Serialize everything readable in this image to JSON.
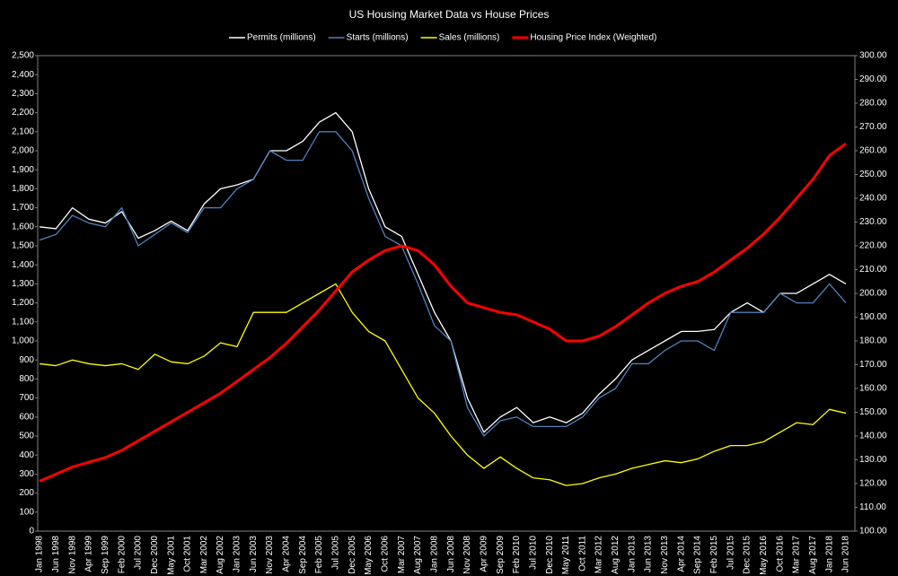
{
  "chart_data": {
    "type": "line",
    "title": "US Housing Market Data vs House Prices",
    "categories": [
      "Jan 1998",
      "Jun 1998",
      "Nov 1998",
      "Apr 1999",
      "Sep 1999",
      "Feb 2000",
      "Jul 2000",
      "Dec 2000",
      "May 2001",
      "Oct 2001",
      "Mar 2002",
      "Aug 2002",
      "Jan 2003",
      "Jun 2003",
      "Nov 2003",
      "Apr 2004",
      "Sep 2004",
      "Feb 2005",
      "Jul 2005",
      "Dec 2005",
      "May 2006",
      "Oct 2006",
      "Mar 2007",
      "Aug 2007",
      "Jan 2008",
      "Jun 2008",
      "Nov 2008",
      "Apr 2009",
      "Sep 2009",
      "Feb 2010",
      "Jul 2010",
      "Dec 2010",
      "May 2011",
      "Oct 2011",
      "Mar 2012",
      "Aug 2012",
      "Jan 2013",
      "Jun 2013",
      "Nov 2013",
      "Apr 2014",
      "Sep 2014",
      "Feb 2015",
      "Jul 2015",
      "Dec 2015",
      "May 2016",
      "Oct 2016",
      "Mar 2017",
      "Aug 2017",
      "Jan 2018",
      "Jun 2018"
    ],
    "series": [
      {
        "name": "Permits (millions)",
        "color": "#ffffff",
        "values": [
          1600,
          1590,
          1700,
          1640,
          1620,
          1680,
          1540,
          1580,
          1630,
          1580,
          1720,
          1800,
          1820,
          1850,
          2000,
          2000,
          2050,
          2150,
          2200,
          2100,
          1800,
          1600,
          1550,
          1350,
          1150,
          1000,
          700,
          520,
          600,
          650,
          570,
          600,
          570,
          620,
          720,
          800,
          900,
          950,
          1000,
          1050,
          1050,
          1060,
          1150,
          1200,
          1150,
          1250,
          1250,
          1300,
          1350,
          1300
        ]
      },
      {
        "name": "Starts (millions)",
        "color": "#4f81bd",
        "values": [
          1530,
          1560,
          1660,
          1620,
          1600,
          1700,
          1500,
          1560,
          1620,
          1570,
          1700,
          1700,
          1800,
          1850,
          2000,
          1950,
          1950,
          2100,
          2100,
          2000,
          1750,
          1550,
          1500,
          1300,
          1080,
          1000,
          650,
          500,
          580,
          600,
          550,
          550,
          550,
          600,
          700,
          750,
          880,
          880,
          950,
          1000,
          1000,
          950,
          1150,
          1150,
          1150,
          1250,
          1200,
          1200,
          1300,
          1200
        ]
      },
      {
        "name": "Sales (millions)",
        "color": "#ffff00",
        "values": [
          880,
          870,
          900,
          880,
          870,
          880,
          850,
          930,
          890,
          880,
          920,
          990,
          970,
          1150,
          1150,
          1150,
          1200,
          1250,
          1300,
          1150,
          1050,
          1000,
          850,
          700,
          620,
          500,
          400,
          330,
          390,
          330,
          280,
          270,
          240,
          250,
          280,
          300,
          330,
          350,
          370,
          360,
          380,
          420,
          450,
          450,
          470,
          520,
          570,
          560,
          640,
          620
        ]
      },
      {
        "name": "Housing Price Index (Weighted)",
        "color": "#ff0000",
        "axis": "y2",
        "values": [
          121,
          124,
          127,
          129,
          131,
          134,
          138,
          142,
          146,
          150,
          154,
          158,
          163,
          168,
          173,
          179,
          186,
          193,
          201,
          209,
          214,
          218,
          220,
          218,
          212,
          203,
          196,
          194,
          192,
          191,
          188,
          185,
          180,
          180,
          182,
          186,
          191,
          196,
          200,
          203,
          205,
          209,
          214,
          219,
          225,
          232,
          240,
          248,
          258,
          263
        ]
      }
    ],
    "ylim": [
      0,
      2500
    ],
    "yticks": [
      0,
      100,
      200,
      300,
      400,
      500,
      600,
      700,
      800,
      900,
      {
        "value": 1000,
        "label": "1,000"
      },
      {
        "value": 1100,
        "label": "1,100"
      },
      {
        "value": 1200,
        "label": "1,200"
      },
      {
        "value": 1300,
        "label": "1,300"
      },
      {
        "value": 1400,
        "label": "1,400"
      },
      {
        "value": 1500,
        "label": "1,500"
      },
      {
        "value": 1600,
        "label": "1,600"
      },
      {
        "value": 1700,
        "label": "1,700"
      },
      {
        "value": 1800,
        "label": "1,800"
      },
      {
        "value": 1900,
        "label": "1,900"
      },
      {
        "value": 2000,
        "label": "2,000"
      },
      {
        "value": 2100,
        "label": "2,100"
      },
      {
        "value": 2200,
        "label": "2,200"
      },
      {
        "value": 2300,
        "label": "2,300"
      },
      {
        "value": 2400,
        "label": "2,400"
      },
      {
        "value": 2500,
        "label": "2,500"
      }
    ],
    "y2lim": [
      100,
      300
    ],
    "y2ticks": [
      {
        "value": 100,
        "label": "100.00"
      },
      {
        "value": 110,
        "label": "110.00"
      },
      {
        "value": 120,
        "label": "120.00"
      },
      {
        "value": 130,
        "label": "130.00"
      },
      {
        "value": 140,
        "label": "140.00"
      },
      {
        "value": 150,
        "label": "150.00"
      },
      {
        "value": 160,
        "label": "160.00"
      },
      {
        "value": 170,
        "label": "170.00"
      },
      {
        "value": 180,
        "label": "180.00"
      },
      {
        "value": 190,
        "label": "190.00"
      },
      {
        "value": 200,
        "label": "200.00"
      },
      {
        "value": 210,
        "label": "210.00"
      },
      {
        "value": 220,
        "label": "220.00"
      },
      {
        "value": 230,
        "label": "230.00"
      },
      {
        "value": 240,
        "label": "240.00"
      },
      {
        "value": 250,
        "label": "250.00"
      },
      {
        "value": 260,
        "label": "260.00"
      },
      {
        "value": 270,
        "label": "270.00"
      },
      {
        "value": 280,
        "label": "280.00"
      },
      {
        "value": 290,
        "label": "290.00"
      },
      {
        "value": 300,
        "label": "300.00"
      }
    ],
    "legend": "top"
  }
}
